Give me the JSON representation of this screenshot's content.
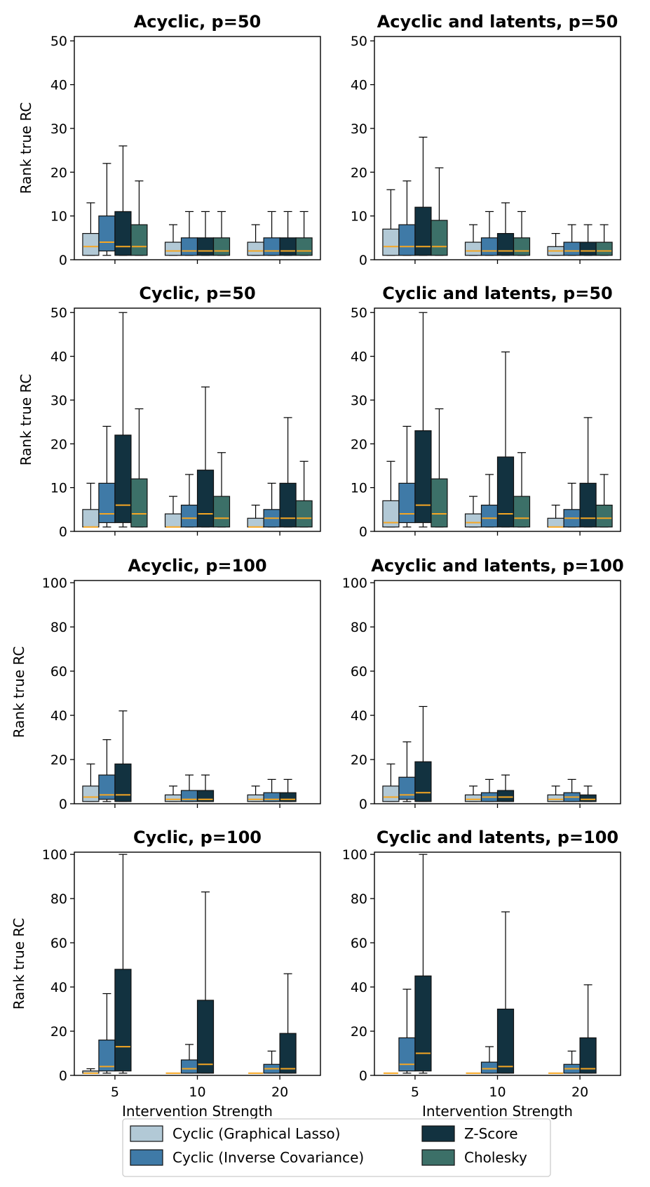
{
  "chart_data": {
    "type": "box",
    "legend": {
      "position": "bottom-center",
      "entries": [
        {
          "name": "Cyclic (Graphical Lasso)",
          "color": "#b2c9d6"
        },
        {
          "name": "Cyclic (Inverse Covariance)",
          "color": "#3f7aa7"
        },
        {
          "name": "Z-Score",
          "color": "#123240"
        },
        {
          "name": "Cholesky",
          "color": "#3c7068"
        }
      ]
    },
    "median_color": "#f5a623",
    "panels": [
      {
        "title": "Acyclic, p=50",
        "ylabel": "Rank true RC",
        "xlabel": "",
        "ylim": [
          0,
          51
        ],
        "yticks": [
          0,
          10,
          20,
          30,
          40,
          50
        ],
        "categories": [
          "5",
          "10",
          "20"
        ],
        "boxes": [
          [
            [
              1,
              1,
              3,
              6,
              13
            ],
            [
              1,
              2,
              4,
              10,
              22
            ],
            [
              1,
              1,
              3,
              11,
              26
            ],
            [
              1,
              1,
              3,
              8,
              18
            ]
          ],
          [
            [
              1,
              1,
              2,
              4,
              8
            ],
            [
              1,
              1,
              2,
              5,
              11
            ],
            [
              1,
              1,
              2,
              5,
              11
            ],
            [
              1,
              1,
              2,
              5,
              11
            ]
          ],
          [
            [
              1,
              1,
              2,
              4,
              8
            ],
            [
              1,
              1,
              2,
              5,
              11
            ],
            [
              1,
              1,
              2,
              5,
              11
            ],
            [
              1,
              1,
              2,
              5,
              11
            ]
          ]
        ]
      },
      {
        "title": "Acyclic and latents, p=50",
        "ylabel": "",
        "xlabel": "",
        "ylim": [
          0,
          51
        ],
        "yticks": [
          0,
          10,
          20,
          30,
          40,
          50
        ],
        "categories": [
          "5",
          "10",
          "20"
        ],
        "boxes": [
          [
            [
              1,
              1,
              3,
              7,
              16
            ],
            [
              1,
              1,
              3,
              8,
              18
            ],
            [
              1,
              1,
              3,
              12,
              28
            ],
            [
              1,
              1,
              3,
              9,
              21
            ]
          ],
          [
            [
              1,
              1,
              2,
              4,
              8
            ],
            [
              1,
              1,
              2,
              5,
              11
            ],
            [
              1,
              1,
              2,
              6,
              13
            ],
            [
              1,
              1,
              2,
              5,
              11
            ]
          ],
          [
            [
              1,
              1,
              2,
              3,
              6
            ],
            [
              1,
              1,
              2,
              4,
              8
            ],
            [
              1,
              1,
              2,
              4,
              8
            ],
            [
              1,
              1,
              2,
              4,
              8
            ]
          ]
        ]
      },
      {
        "title": "Cyclic, p=50",
        "ylabel": "Rank true RC",
        "xlabel": "",
        "ylim": [
          0,
          51
        ],
        "yticks": [
          0,
          10,
          20,
          30,
          40,
          50
        ],
        "categories": [
          "5",
          "10",
          "20"
        ],
        "boxes": [
          [
            [
              1,
              1,
              1,
              5,
              11
            ],
            [
              1,
              2,
              4,
              11,
              24
            ],
            [
              1,
              2,
              6,
              22,
              50
            ],
            [
              1,
              1,
              4,
              12,
              28
            ]
          ],
          [
            [
              1,
              1,
              1,
              4,
              8
            ],
            [
              1,
              1,
              3,
              6,
              13
            ],
            [
              1,
              1,
              4,
              14,
              33
            ],
            [
              1,
              1,
              3,
              8,
              18
            ]
          ],
          [
            [
              1,
              1,
              1,
              3,
              6
            ],
            [
              1,
              1,
              3,
              5,
              11
            ],
            [
              1,
              1,
              3,
              11,
              26
            ],
            [
              1,
              1,
              3,
              7,
              16
            ]
          ]
        ]
      },
      {
        "title": "Cyclic and latents, p=50",
        "ylabel": "",
        "xlabel": "",
        "ylim": [
          0,
          51
        ],
        "yticks": [
          0,
          10,
          20,
          30,
          40,
          50
        ],
        "categories": [
          "5",
          "10",
          "20"
        ],
        "boxes": [
          [
            [
              1,
              1,
              2,
              7,
              16
            ],
            [
              1,
              2,
              4,
              11,
              24
            ],
            [
              1,
              2,
              6,
              23,
              50
            ],
            [
              1,
              1,
              4,
              12,
              28
            ]
          ],
          [
            [
              1,
              1,
              2,
              4,
              8
            ],
            [
              1,
              1,
              3,
              6,
              13
            ],
            [
              1,
              1,
              4,
              17,
              41
            ],
            [
              1,
              1,
              3,
              8,
              18
            ]
          ],
          [
            [
              1,
              1,
              1,
              3,
              6
            ],
            [
              1,
              1,
              3,
              5,
              11
            ],
            [
              1,
              1,
              3,
              11,
              26
            ],
            [
              1,
              1,
              3,
              6,
              13
            ]
          ]
        ]
      },
      {
        "title": "Acyclic, p=100",
        "ylabel": "Rank true RC",
        "xlabel": "",
        "ylim": [
          0,
          101
        ],
        "yticks": [
          0,
          20,
          40,
          60,
          80,
          100
        ],
        "categories": [
          "5",
          "10",
          "20"
        ],
        "boxes": [
          [
            [
              1,
              1,
              3,
              8,
              18
            ],
            [
              1,
              2,
              4,
              13,
              29
            ],
            [
              1,
              1,
              4,
              18,
              42
            ]
          ],
          [
            [
              1,
              1,
              2,
              4,
              8
            ],
            [
              1,
              1,
              2,
              6,
              13
            ],
            [
              1,
              1,
              2,
              6,
              13
            ]
          ],
          [
            [
              1,
              1,
              2,
              4,
              8
            ],
            [
              1,
              1,
              2,
              5,
              11
            ],
            [
              1,
              1,
              2,
              5,
              11
            ]
          ]
        ]
      },
      {
        "title": "Acyclic and latents, p=100",
        "ylabel": "",
        "xlabel": "",
        "ylim": [
          0,
          101
        ],
        "yticks": [
          0,
          20,
          40,
          60,
          80,
          100
        ],
        "categories": [
          "5",
          "10",
          "20"
        ],
        "boxes": [
          [
            [
              1,
              1,
              3,
              8,
              18
            ],
            [
              1,
              2,
              4,
              12,
              28
            ],
            [
              1,
              1,
              5,
              19,
              44
            ]
          ],
          [
            [
              1,
              1,
              2,
              4,
              8
            ],
            [
              1,
              1,
              3,
              5,
              11
            ],
            [
              1,
              1,
              3,
              6,
              13
            ]
          ],
          [
            [
              1,
              1,
              2,
              4,
              8
            ],
            [
              1,
              1,
              3,
              5,
              11
            ],
            [
              1,
              1,
              2,
              4,
              8
            ]
          ]
        ]
      },
      {
        "title": "Cyclic, p=100",
        "ylabel": "Rank true RC",
        "xlabel": "Intervention Strength",
        "ylim": [
          0,
          101
        ],
        "yticks": [
          0,
          20,
          40,
          60,
          80,
          100
        ],
        "categories": [
          "5",
          "10",
          "20"
        ],
        "boxes": [
          [
            [
              1,
              1,
              1,
              2,
              3
            ],
            [
              1,
              2,
              4,
              16,
              37
            ],
            [
              1,
              2,
              13,
              48,
              100
            ]
          ],
          [
            [
              1,
              1,
              1,
              1,
              1
            ],
            [
              1,
              1,
              3,
              7,
              14
            ],
            [
              1,
              1,
              5,
              34,
              83
            ]
          ],
          [
            [
              1,
              1,
              1,
              1,
              1
            ],
            [
              1,
              1,
              3,
              5,
              11
            ],
            [
              1,
              1,
              3,
              19,
              46
            ]
          ]
        ]
      },
      {
        "title": "Cyclic and latents, p=100",
        "ylabel": "",
        "xlabel": "Intervention Strength",
        "ylim": [
          0,
          101
        ],
        "yticks": [
          0,
          20,
          40,
          60,
          80,
          100
        ],
        "categories": [
          "5",
          "10",
          "20"
        ],
        "boxes": [
          [
            [
              1,
              1,
              1,
              1,
              1
            ],
            [
              1,
              2,
              5,
              17,
              39
            ],
            [
              1,
              2,
              10,
              45,
              100
            ]
          ],
          [
            [
              1,
              1,
              1,
              1,
              1
            ],
            [
              1,
              1,
              3,
              6,
              13
            ],
            [
              1,
              1,
              4,
              30,
              74
            ]
          ],
          [
            [
              1,
              1,
              1,
              1,
              1
            ],
            [
              1,
              1,
              3,
              5,
              11
            ],
            [
              1,
              1,
              3,
              17,
              41
            ]
          ]
        ]
      }
    ]
  }
}
